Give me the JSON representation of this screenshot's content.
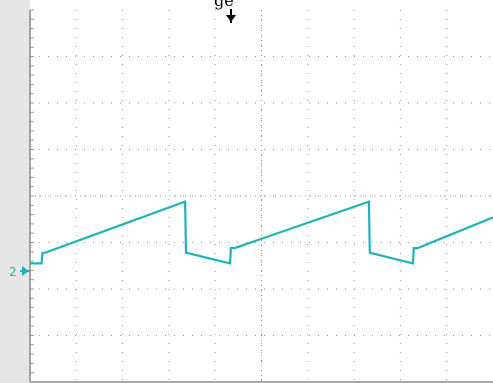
{
  "scope": {
    "top_label": "ge",
    "channel_marker": "2",
    "trigger_marker_icon": "trigger-arrow-icon",
    "channel_marker_icon": "channel-ground-arrow-icon",
    "colors": {
      "trace": "#1fb4b4",
      "grid": "#9a9a9a",
      "frame": "#8c8c8c",
      "background": "#ffffff",
      "left_bar": "#e6e6e6"
    },
    "grid": {
      "horizontal_divisions": 10,
      "vertical_divisions": 8
    },
    "trace_description": "sawtooth"
  },
  "chart_data": {
    "type": "line",
    "title": "",
    "xlabel": "",
    "ylabel": "",
    "xlim": [
      0,
      10
    ],
    "ylim": [
      -4,
      4
    ],
    "grid": true,
    "series": [
      {
        "points": [
          [
            0.0,
            -1.45
          ],
          [
            0.25,
            -1.45
          ],
          [
            0.27,
            -1.22
          ],
          [
            0.33,
            -1.22
          ],
          [
            3.35,
            -0.12
          ],
          [
            3.37,
            -1.22
          ],
          [
            4.32,
            -1.45
          ],
          [
            4.34,
            -1.12
          ],
          [
            4.42,
            -1.12
          ],
          [
            7.32,
            -0.12
          ],
          [
            7.34,
            -1.22
          ],
          [
            8.27,
            -1.45
          ],
          [
            8.29,
            -1.12
          ],
          [
            8.37,
            -1.12
          ],
          [
            10.0,
            -0.46
          ]
        ]
      }
    ]
  }
}
